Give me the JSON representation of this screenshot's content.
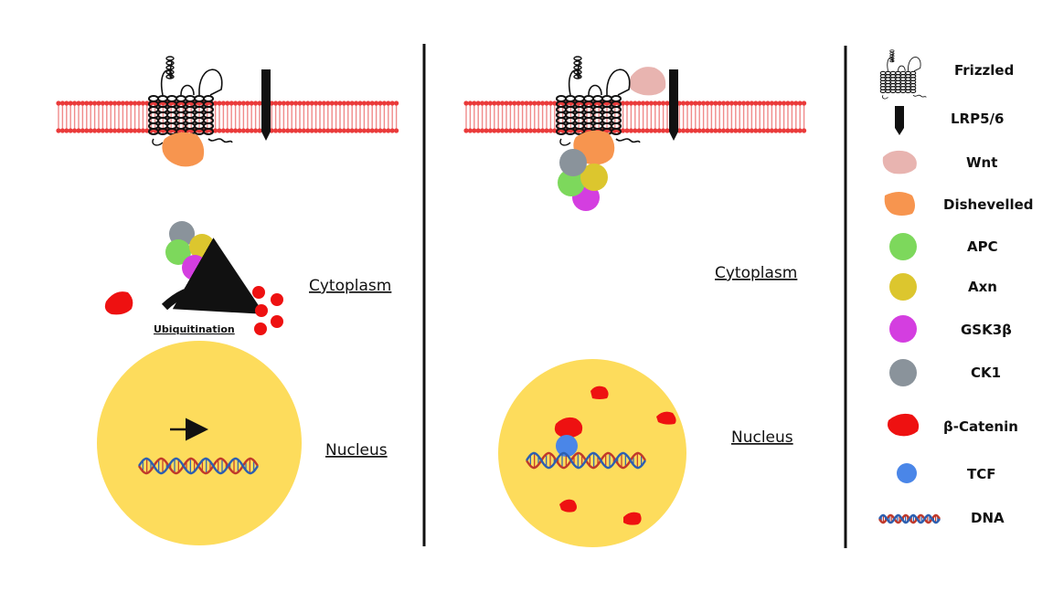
{
  "colors": {
    "membrane": "#ea3a3a",
    "nucleus": "#fddc5c",
    "dishevelled": "#f7954f",
    "wnt": "#e8b4b0",
    "apc": "#7dd85c",
    "axn": "#dcc62e",
    "gsk3b": "#d43ee0",
    "ck1": "#8a939b",
    "beta_catenin": "#ee1111",
    "tcf": "#4a86e8",
    "dna_strand_a": "#c0392b",
    "dna_strand_b": "#2d5fb0"
  },
  "left_panel": {
    "cytoplasm_label": "Cytoplasm",
    "nucleus_label": "Nucleus",
    "ubiquitination_label": "Ubiquitination"
  },
  "right_panel": {
    "cytoplasm_label": "Cytoplasm",
    "nucleus_label": "Nucleus"
  },
  "legend": {
    "items": [
      {
        "id": "frizzled",
        "label": "Frizzled",
        "icon": "frizzled-icon"
      },
      {
        "id": "lrp56",
        "label": "LRP5/6",
        "icon": "lrp-icon"
      },
      {
        "id": "wnt",
        "label": "Wnt",
        "icon": "wnt-icon"
      },
      {
        "id": "dishevelled",
        "label": "Dishevelled",
        "icon": "dishevelled-icon"
      },
      {
        "id": "apc",
        "label": "APC",
        "icon": "apc-icon"
      },
      {
        "id": "axn",
        "label": "Axn",
        "icon": "axn-icon"
      },
      {
        "id": "gsk3b",
        "label": "GSK3β",
        "icon": "gsk3b-icon"
      },
      {
        "id": "ck1",
        "label": "CK1",
        "icon": "ck1-icon"
      },
      {
        "id": "beta_catenin",
        "label": "β-Catenin",
        "icon": "beta-catenin-icon"
      },
      {
        "id": "tcf",
        "label": "TCF",
        "icon": "tcf-icon"
      },
      {
        "id": "dna",
        "label": "DNA",
        "icon": "dna-icon"
      }
    ]
  }
}
